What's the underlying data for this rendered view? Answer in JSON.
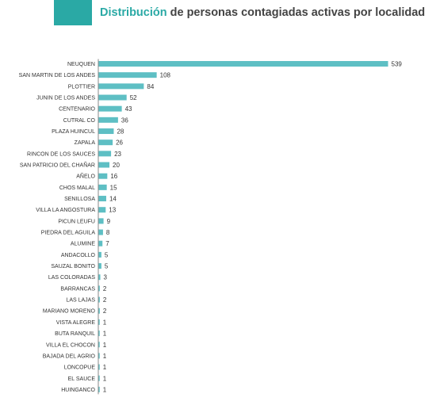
{
  "title": {
    "accent": "Distribución",
    "rest": " de personas contagiadas activas por localidad"
  },
  "colors": {
    "bar": "#5ebfc4",
    "accent": "#2aa9a5",
    "header_block": "#2aa9a5",
    "axis": "#555555"
  },
  "chart_data": {
    "type": "bar",
    "orientation": "horizontal",
    "title": "Distribución de personas contagiadas activas por localidad",
    "categories": [
      "NEUQUEN",
      "SAN MARTIN DE LOS ANDES",
      "PLOTTIER",
      "JUNIN DE LOS ANDES",
      "CENTENARIO",
      "CUTRAL CO",
      "PLAZA HUINCUL",
      "ZAPALA",
      "RINCON DE LOS SAUCES",
      "SAN PATRICIO DEL CHAÑAR",
      "AÑELO",
      "CHOS MALAL",
      "SENILLOSA",
      "VILLA LA ANGOSTURA",
      "PICUN LEUFU",
      "PIEDRA DEL AGUILA",
      "ALUMINE",
      "ANDACOLLO",
      "SAUZAL BONITO",
      "LAS COLORADAS",
      "BARRANCAS",
      "LAS LAJAS",
      "MARIANO MORENO",
      "VISTA ALEGRE",
      "BUTA RANQUIL",
      "VILLA EL CHOCON",
      "BAJADA DEL AGRIO",
      "LONCOPUE",
      "EL SAUCE",
      "HUINGANCO"
    ],
    "values": [
      539,
      108,
      84,
      52,
      43,
      36,
      28,
      26,
      23,
      20,
      16,
      15,
      14,
      13,
      9,
      8,
      7,
      5,
      5,
      3,
      2,
      2,
      2,
      1,
      1,
      1,
      1,
      1,
      1,
      1
    ],
    "xlim": [
      0,
      539
    ],
    "grid": false,
    "data_labels": true
  }
}
